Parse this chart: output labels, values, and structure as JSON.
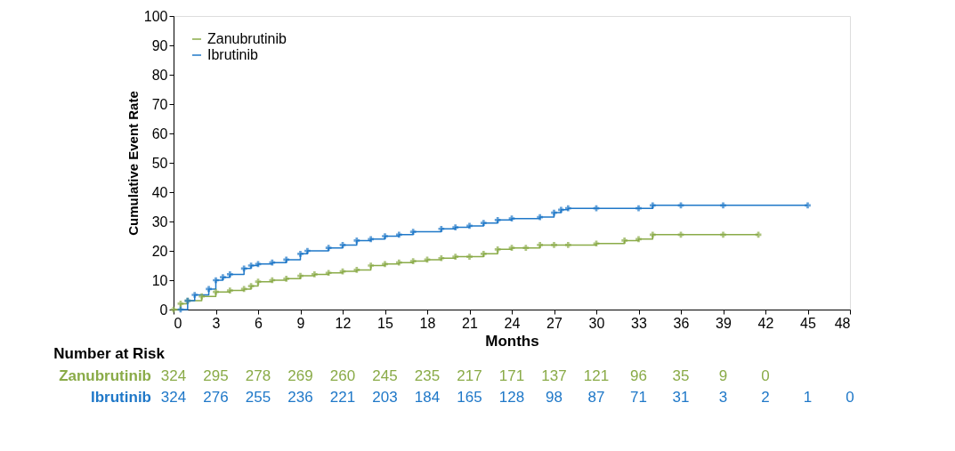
{
  "chart_data": {
    "type": "step",
    "xlabel": "Months",
    "ylabel": "Cumulative Event Rate",
    "xlim": [
      0,
      48
    ],
    "xticks": [
      0,
      3,
      6,
      9,
      12,
      15,
      18,
      21,
      24,
      27,
      30,
      33,
      36,
      39,
      42,
      45,
      48
    ],
    "ylim": [
      0,
      100
    ],
    "yticks": [
      0,
      10,
      20,
      30,
      40,
      50,
      60,
      70,
      80,
      90,
      100
    ],
    "grid": false,
    "legend": "top left",
    "marker": "cross",
    "line_style": "solid",
    "series": [
      {
        "name": "Zanubrutinib",
        "color": "#8aab48",
        "x": [
          0,
          0.5,
          1,
          2,
          3,
          4,
          5,
          5.5,
          6,
          7,
          8,
          9,
          10,
          11,
          12,
          13,
          14,
          15,
          16,
          17,
          18,
          19,
          20,
          21,
          22,
          23,
          24,
          25,
          26,
          27,
          28,
          30,
          32,
          33,
          34,
          36,
          39,
          41.5
        ],
        "values": [
          0,
          2,
          3,
          4.5,
          6,
          6.5,
          7,
          8,
          9.5,
          10,
          10.5,
          11.5,
          12,
          12.5,
          13,
          13.5,
          15,
          15.5,
          16,
          16.5,
          17,
          17.5,
          18,
          18,
          19,
          20.5,
          21,
          21,
          22,
          22,
          22,
          22.5,
          23.5,
          24,
          25.5,
          25.5,
          25.5,
          25.5
        ]
      },
      {
        "name": "Ibrutinib",
        "color": "#1f78c8",
        "x": [
          0.5,
          1,
          1.5,
          2.5,
          3,
          3.5,
          4,
          5,
          5.5,
          6,
          7,
          8,
          9,
          9.5,
          11,
          12,
          13,
          14,
          15,
          16,
          17,
          19,
          20,
          21,
          22,
          23,
          24,
          26,
          27,
          27.5,
          28,
          30,
          33,
          34,
          36,
          39,
          45
        ],
        "values": [
          0,
          3,
          5,
          7,
          10,
          11,
          12,
          14,
          15,
          15.5,
          16,
          17,
          19,
          20,
          21,
          22,
          23.5,
          24,
          25,
          25.5,
          26.5,
          27.5,
          28,
          28.5,
          29.5,
          30.5,
          31,
          31.5,
          33,
          34,
          34.5,
          34.5,
          34.5,
          35.5,
          35.5,
          35.5,
          35.5
        ]
      }
    ],
    "annotations": [
      "Number at Risk",
      "Zanubrutinib",
      "Ibrutinib",
      "324 295 278 269 260 245 235 217 171 137 121 96 35 9 0",
      "324 276 255 236 221 203 184 165 128 98 87 71 31 3 2 1 0"
    ]
  }
}
